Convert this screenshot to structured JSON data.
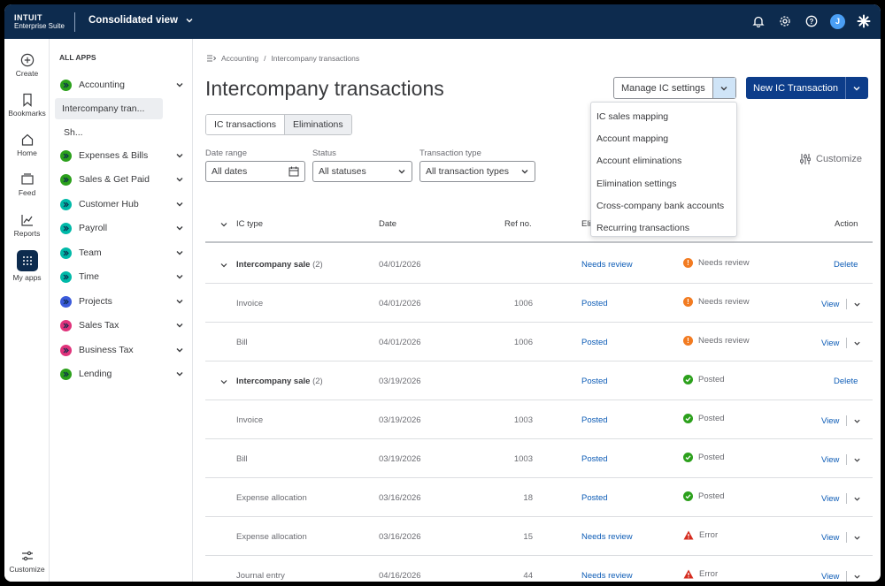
{
  "topbar": {
    "brand_line1": "INTUIT",
    "brand_line2": "Enterprise Suite",
    "company": "Consolidated view",
    "avatar": "J",
    "icons": [
      "bell-icon",
      "gear-icon",
      "help-icon",
      "sparkle-icon"
    ]
  },
  "rail": {
    "items": [
      {
        "label": "Create",
        "icon": "plus-circle-icon"
      },
      {
        "label": "Bookmarks",
        "icon": "bookmark-icon"
      },
      {
        "label": "Home",
        "icon": "home-icon"
      },
      {
        "label": "Feed",
        "icon": "feed-icon"
      },
      {
        "label": "Reports",
        "icon": "chart-icon"
      },
      {
        "label": "My apps",
        "icon": "grid-icon"
      }
    ],
    "customize": "Customize"
  },
  "apps": {
    "title": "ALL APPS",
    "items": [
      {
        "label": "Accounting",
        "color": "#2ca01c"
      },
      {
        "label": "Intercompany tran..."
      },
      {
        "label": "Sh..."
      },
      {
        "label": "Expenses & Bills",
        "color": "#2ca01c"
      },
      {
        "label": "Sales & Get Paid",
        "color": "#2ca01c"
      },
      {
        "label": "Customer Hub",
        "color": "#00b9a8"
      },
      {
        "label": "Payroll",
        "color": "#00b9a8"
      },
      {
        "label": "Team",
        "color": "#00b9a8"
      },
      {
        "label": "Time",
        "color": "#00b9a8"
      },
      {
        "label": "Projects",
        "color": "#3b5bdb"
      },
      {
        "label": "Sales Tax",
        "color": "#e0337b"
      },
      {
        "label": "Business Tax",
        "color": "#e0337b"
      },
      {
        "label": "Lending",
        "color": "#2ca01c"
      }
    ]
  },
  "breadcrumb": {
    "part1": "Accounting",
    "sep": "/",
    "part2": "Intercompany transactions"
  },
  "page": {
    "title": "Intercompany transactions",
    "manage_button": "Manage IC settings",
    "new_button": "New IC Transaction"
  },
  "menu": {
    "items": [
      "IC sales mapping",
      "Account mapping",
      "Account eliminations",
      "Elimination settings",
      "Cross-company bank accounts",
      "Recurring transactions"
    ]
  },
  "tabs": {
    "tab1": "IC transactions",
    "tab2": "Eliminations"
  },
  "filters": {
    "date_label": "Date range",
    "date_value": "All dates",
    "status_label": "Status",
    "status_value": "All statuses",
    "type_label": "Transaction type",
    "type_value": "All transaction types"
  },
  "customize": "Customize",
  "table": {
    "headers": {
      "type": "IC type",
      "date": "Date",
      "ref": "Ref no.",
      "elim": "Elim",
      "action": "Action"
    },
    "rows": [
      {
        "group": true,
        "type": "Intercompany sale",
        "count": "(2)",
        "date": "04/01/2026",
        "ref": "",
        "posting": "Needs review",
        "status": "Needs review",
        "status_kind": "warn",
        "action": "Delete"
      },
      {
        "group": false,
        "type": "Invoice",
        "count": "",
        "date": "04/01/2026",
        "ref": "1006",
        "posting": "Posted",
        "status": "Needs review",
        "status_kind": "warn",
        "action": "View"
      },
      {
        "group": false,
        "type": "Bill",
        "count": "",
        "date": "04/01/2026",
        "ref": "1006",
        "posting": "Posted",
        "status": "Needs review",
        "status_kind": "warn",
        "action": "View"
      },
      {
        "group": true,
        "type": "Intercompany sale",
        "count": "(2)",
        "date": "03/19/2026",
        "ref": "",
        "posting": "Posted",
        "status": "Posted",
        "status_kind": "ok",
        "action": "Delete"
      },
      {
        "group": false,
        "type": "Invoice",
        "count": "",
        "date": "03/19/2026",
        "ref": "1003",
        "posting": "Posted",
        "status": "Posted",
        "status_kind": "ok",
        "action": "View"
      },
      {
        "group": false,
        "type": "Bill",
        "count": "",
        "date": "03/19/2026",
        "ref": "1003",
        "posting": "Posted",
        "status": "Posted",
        "status_kind": "ok",
        "action": "View"
      },
      {
        "group": false,
        "type": "Expense allocation",
        "count": "",
        "date": "03/16/2026",
        "ref": "18",
        "posting": "Posted",
        "status": "Posted",
        "status_kind": "ok",
        "action": "View"
      },
      {
        "group": false,
        "type": "Expense allocation",
        "count": "",
        "date": "03/16/2026",
        "ref": "15",
        "posting": "Needs review",
        "status": "Error",
        "status_kind": "error",
        "action": "View"
      },
      {
        "group": false,
        "type": "Journal entry",
        "count": "",
        "date": "04/16/2026",
        "ref": "44",
        "posting": "Needs review",
        "status": "Error",
        "status_kind": "error",
        "action": "View"
      }
    ]
  },
  "colors": {
    "navy": "#0d2b4e",
    "primary": "#0d3d8a",
    "link": "#0d5cb6",
    "warn": "#f27b21",
    "ok": "#2ca01c",
    "error": "#d52b1e"
  }
}
